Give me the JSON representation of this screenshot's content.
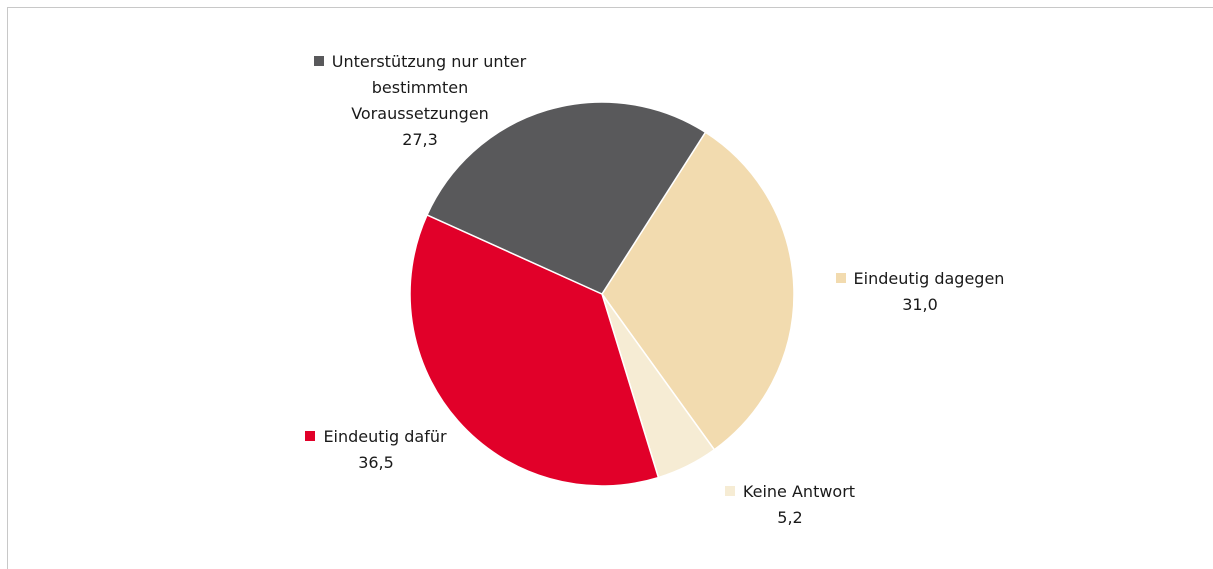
{
  "chart_data": {
    "type": "pie",
    "categories": [
      "Eindeutig dagegen",
      "Keine Antwort",
      "Eindeutig dafür",
      "Unterstützung nur unter bestimmten Voraussetzungen"
    ],
    "values": [
      31.0,
      5.2,
      36.5,
      27.3
    ],
    "value_labels": [
      "31,0",
      "5,2",
      "36,5",
      "27,3"
    ],
    "colors": [
      "#f2dbaf",
      "#f6ecd4",
      "#e10029",
      "#59595b"
    ]
  }
}
